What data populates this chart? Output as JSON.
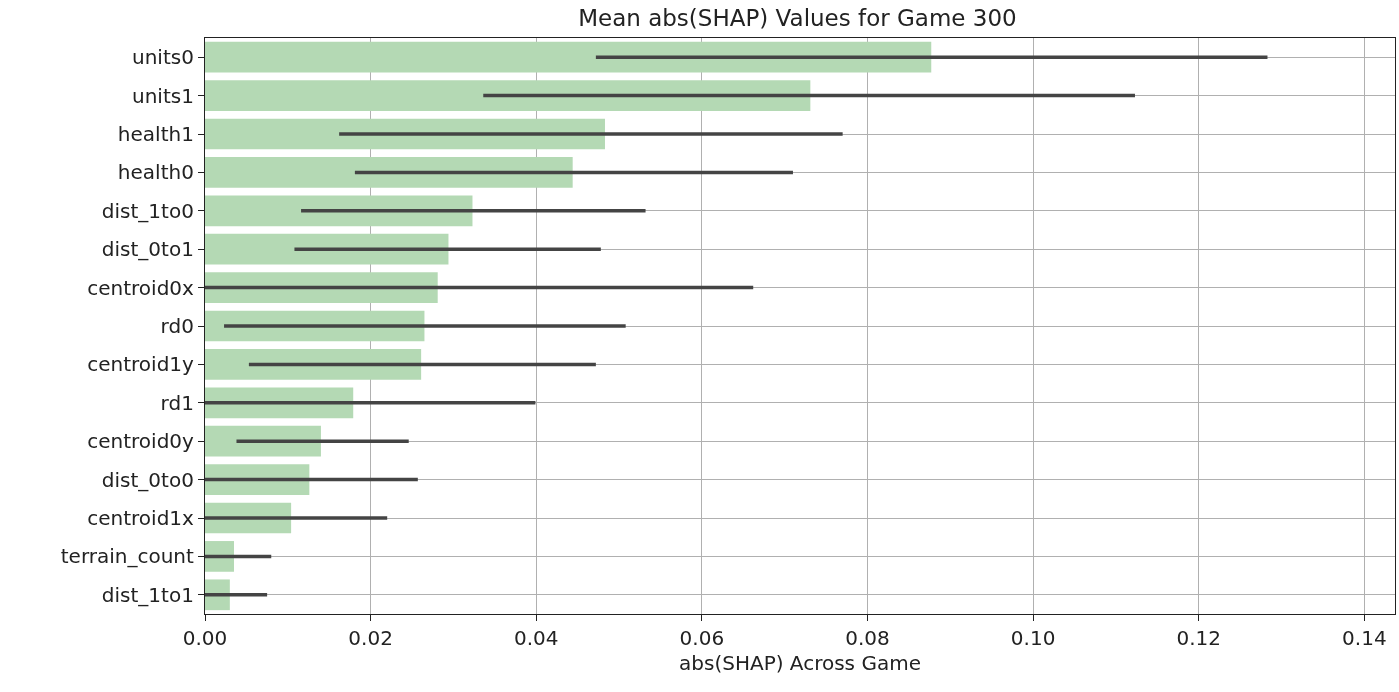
{
  "chart_data": {
    "type": "bar",
    "orientation": "horizontal",
    "title": "Mean abs(SHAP) Values for Game 300",
    "xlabel": "abs(SHAP) Across Game",
    "categories": [
      "units0",
      "units1",
      "health1",
      "health0",
      "dist_1to0",
      "dist_0to1",
      "centroid0x",
      "rd0",
      "centroid1y",
      "rd1",
      "centroid0y",
      "dist_0to0",
      "centroid1x",
      "terrain_count",
      "dist_1to1"
    ],
    "values": [
      0.0877,
      0.0731,
      0.0483,
      0.0444,
      0.0323,
      0.0294,
      0.0281,
      0.0265,
      0.0261,
      0.0179,
      0.014,
      0.0126,
      0.0104,
      0.0035,
      0.003
    ],
    "errors": [
      [
        0.0472,
        0.1283
      ],
      [
        0.0336,
        0.1123
      ],
      [
        0.0162,
        0.077
      ],
      [
        0.0181,
        0.071
      ],
      [
        0.0116,
        0.0532
      ],
      [
        0.0108,
        0.0478
      ],
      [
        0.0,
        0.0662
      ],
      [
        0.0023,
        0.0508
      ],
      [
        0.0053,
        0.0472
      ],
      [
        0.0,
        0.0399
      ],
      [
        0.0038,
        0.0246
      ],
      [
        0.0,
        0.0257
      ],
      [
        0.0,
        0.022
      ],
      [
        0.0,
        0.008
      ],
      [
        0.0,
        0.0075
      ]
    ],
    "color": "#b4d9b4",
    "xlim": [
      0,
      0.1437
    ],
    "xticks": [
      {
        "value": 0,
        "label": "0.00"
      },
      {
        "value": 0.02,
        "label": "0.02"
      },
      {
        "value": 0.04,
        "label": "0.04"
      },
      {
        "value": 0.06,
        "label": "0.06"
      },
      {
        "value": 0.08,
        "label": "0.08"
      },
      {
        "value": 0.1,
        "label": "0.10"
      },
      {
        "value": 0.12,
        "label": "0.12"
      },
      {
        "value": 0.14,
        "label": "0.14"
      }
    ],
    "grid": true
  }
}
